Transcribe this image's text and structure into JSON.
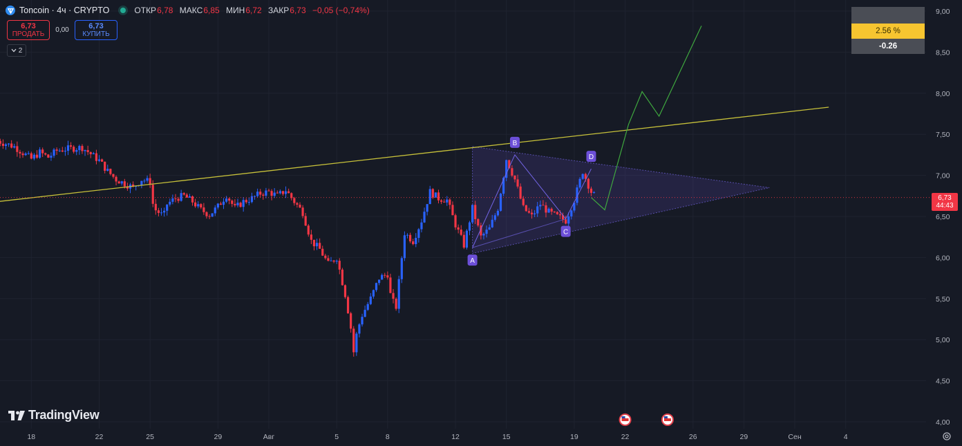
{
  "header": {
    "symbol": "Toncoin · 4ч · CRYPTO",
    "ohlc": [
      {
        "key": "ОТКР",
        "value": "6,78"
      },
      {
        "key": "МАКС",
        "value": "6,85"
      },
      {
        "key": "МИН",
        "value": "6,72"
      },
      {
        "key": "ЗАКР",
        "value": "6,73"
      }
    ],
    "change": "−0,05 (−0,74%)"
  },
  "trade": {
    "sell_price": "6,73",
    "sell_label": "ПРОДАТЬ",
    "spread": "0,00",
    "buy_price": "6,73",
    "buy_label": "КУПИТЬ"
  },
  "layers_count": "2",
  "brand": "TradingView",
  "measure": {
    "percent": "2.56 %",
    "delta": "-0.26"
  },
  "last_price": {
    "price": "6,73",
    "countdown": "44:43"
  },
  "colors": {
    "background": "#161a25",
    "up": "#2962ff",
    "down": "#f23645",
    "trendline": "#c8c23a",
    "projection": "#3fa83f",
    "triangle": "#7b6cf6",
    "marker": "#6c4fd8"
  },
  "chart_data": {
    "type": "candlestick",
    "y_ticks": [
      "9,00",
      "8,50",
      "8,00",
      "7,50",
      "7,00",
      "6,50",
      "6,00",
      "5,50",
      "5,00",
      "4,50",
      "4,00"
    ],
    "y_values": [
      9.0,
      8.5,
      8.0,
      7.5,
      7.0,
      6.5,
      6.0,
      5.5,
      5.0,
      4.5,
      4.0
    ],
    "x_ticks": [
      "18",
      "22",
      "25",
      "29",
      "Авг",
      "5",
      "8",
      "12",
      "15",
      "19",
      "22",
      "26",
      "29",
      "Сен",
      "4"
    ],
    "x_tick_days": [
      -14,
      -10,
      -7,
      -3,
      0,
      4,
      7,
      11,
      14,
      18,
      21,
      25,
      28,
      31,
      34
    ],
    "ylim": [
      4.0,
      9.0
    ],
    "price_path": [
      [
        -16,
        7.42
      ],
      [
        -15,
        7.35
      ],
      [
        -14,
        7.2
      ],
      [
        -13.5,
        7.28
      ],
      [
        -13,
        7.22
      ],
      [
        -12.5,
        7.3
      ],
      [
        -12,
        7.32
      ],
      [
        -11,
        7.34
      ],
      [
        -10,
        7.18
      ],
      [
        -9.5,
        7.05
      ],
      [
        -9,
        6.95
      ],
      [
        -8.5,
        6.9
      ],
      [
        -8,
        6.85
      ],
      [
        -7.5,
        6.95
      ],
      [
        -7,
        6.92
      ],
      [
        -6.8,
        6.6
      ],
      [
        -6.5,
        6.55
      ],
      [
        -6.2,
        6.5
      ],
      [
        -6,
        6.65
      ],
      [
        -5.5,
        6.72
      ],
      [
        -5,
        6.75
      ],
      [
        -4.5,
        6.68
      ],
      [
        -4,
        6.58
      ],
      [
        -3.5,
        6.52
      ],
      [
        -3,
        6.62
      ],
      [
        -2.5,
        6.76
      ],
      [
        -2,
        6.6
      ],
      [
        -1.5,
        6.68
      ],
      [
        -1,
        6.72
      ],
      [
        -0.5,
        6.78
      ],
      [
        0,
        6.8
      ],
      [
        0.5,
        6.75
      ],
      [
        1,
        6.82
      ],
      [
        1.5,
        6.68
      ],
      [
        2,
        6.55
      ],
      [
        2.5,
        6.2
      ],
      [
        3,
        6.1
      ],
      [
        3.5,
        5.92
      ],
      [
        4,
        6.0
      ],
      [
        4.5,
        5.55
      ],
      [
        4.8,
        5.2
      ],
      [
        5,
        4.85
      ],
      [
        5.2,
        5.1
      ],
      [
        5.5,
        5.3
      ],
      [
        6,
        5.5
      ],
      [
        6.5,
        5.75
      ],
      [
        7,
        5.8
      ],
      [
        7.2,
        5.5
      ],
      [
        7.5,
        5.4
      ],
      [
        8,
        6.3
      ],
      [
        8.5,
        6.2
      ],
      [
        9,
        6.45
      ],
      [
        9.5,
        6.8
      ],
      [
        10,
        6.72
      ],
      [
        10.5,
        6.7
      ],
      [
        11,
        6.4
      ],
      [
        11.5,
        6.15
      ],
      [
        12,
        6.6
      ],
      [
        12.5,
        6.25
      ],
      [
        13,
        6.35
      ],
      [
        13.5,
        6.6
      ],
      [
        14,
        7.2
      ],
      [
        14.5,
        6.95
      ],
      [
        15,
        6.6
      ],
      [
        15.5,
        6.5
      ],
      [
        16,
        6.65
      ],
      [
        16.5,
        6.55
      ],
      [
        17,
        6.5
      ],
      [
        17.5,
        6.45
      ],
      [
        18,
        6.7
      ],
      [
        18.5,
        7.05
      ],
      [
        19,
        6.8
      ],
      [
        19.3,
        6.73
      ]
    ],
    "last": 6.73,
    "harmonic_points": [
      {
        "label": "A",
        "day": 12.0,
        "value": 6.12
      },
      {
        "label": "B",
        "day": 14.5,
        "value": 7.25
      },
      {
        "label": "C",
        "day": 17.5,
        "value": 6.47
      },
      {
        "label": "D",
        "day": 19.0,
        "value": 7.08
      }
    ],
    "triangle": {
      "start_day": 12.0,
      "top": 7.35,
      "bottom": 6.05,
      "apex_day": 29.5,
      "apex_value": 6.85
    },
    "trendline": {
      "day1": -16,
      "value1": 6.68,
      "day2": 33,
      "value2": 7.83
    },
    "projection": [
      [
        19.8,
        6.58
      ],
      [
        21.2,
        7.62
      ],
      [
        22.0,
        8.02
      ],
      [
        23.0,
        7.72
      ],
      [
        25.5,
        8.82
      ]
    ],
    "event_markers_days": [
      21.0,
      23.5
    ]
  }
}
